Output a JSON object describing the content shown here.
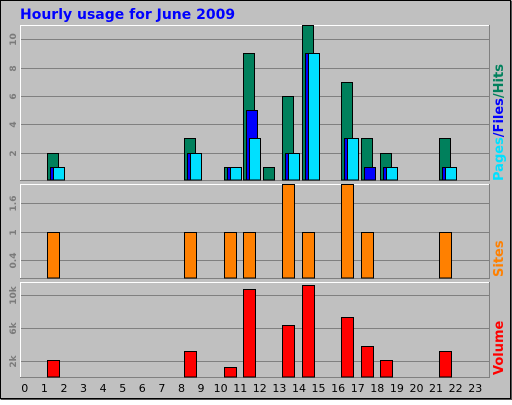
{
  "title": "Hourly usage for June 2009",
  "colors": {
    "background": "#C0C0C0",
    "title": "#0000FF",
    "hits": "#00805C",
    "files": "#0000FF",
    "pages": "#00E0FF",
    "sites": "#FF8000",
    "volume": "#FF0000",
    "grid": "#808080",
    "tick_label": "#7A7A7A"
  },
  "chart_data": [
    {
      "type": "bar",
      "panel": "pages-files-hits",
      "side_label": {
        "pages": "Pages",
        "sep1": "/",
        "files": "Files",
        "sep2": "/",
        "hits": "Hits"
      },
      "ylim": [
        0,
        11
      ],
      "yticks": [
        "2",
        "4",
        "6",
        "8",
        "10"
      ],
      "ytick_values": [
        2,
        4,
        6,
        8,
        10
      ],
      "grid": true,
      "series": [
        {
          "name": "Hits",
          "values": [
            0,
            2,
            0,
            0,
            0,
            0,
            0,
            0,
            3,
            0,
            1,
            9,
            1,
            6,
            11,
            0,
            7,
            3,
            2,
            0,
            0,
            3,
            0,
            0
          ]
        },
        {
          "name": "Files",
          "values": [
            0,
            1,
            0,
            0,
            0,
            0,
            0,
            0,
            2,
            0,
            1,
            5,
            0,
            2,
            9,
            0,
            3,
            1,
            1,
            0,
            0,
            1,
            0,
            0
          ]
        },
        {
          "name": "Pages",
          "values": [
            0,
            1,
            0,
            0,
            0,
            0,
            0,
            0,
            2,
            0,
            1,
            3,
            0,
            2,
            9,
            0,
            3,
            0,
            1,
            0,
            0,
            1,
            0,
            0
          ]
        }
      ]
    },
    {
      "type": "bar",
      "panel": "sites",
      "side_label": "Sites",
      "ylim": [
        0,
        2
      ],
      "yticks": [
        "0.4",
        "1",
        "1.6"
      ],
      "ytick_values": [
        0.4,
        1,
        1.6
      ],
      "grid": true,
      "series": [
        {
          "name": "Sites",
          "values": [
            0,
            1,
            0,
            0,
            0,
            0,
            0,
            0,
            1,
            0,
            1,
            1,
            0,
            2,
            1,
            0,
            2,
            1,
            0,
            0,
            0,
            1,
            0,
            0
          ]
        }
      ]
    },
    {
      "type": "bar",
      "panel": "volume",
      "side_label": "Volume",
      "ylim": [
        0,
        11500
      ],
      "yticks": [
        "2k",
        "6k",
        "10k"
      ],
      "ytick_values": [
        2000,
        6000,
        10000
      ],
      "grid": true,
      "series": [
        {
          "name": "Volume",
          "values": [
            0,
            2200,
            0,
            0,
            0,
            0,
            0,
            0,
            3200,
            0,
            1300,
            10700,
            0,
            6300,
            11200,
            0,
            7300,
            3800,
            2200,
            0,
            0,
            3200,
            0,
            0
          ]
        }
      ]
    }
  ],
  "x_axis": {
    "categories": [
      "0",
      "1",
      "2",
      "3",
      "4",
      "5",
      "6",
      "7",
      "8",
      "9",
      "10",
      "11",
      "12",
      "13",
      "14",
      "15",
      "16",
      "17",
      "18",
      "19",
      "20",
      "21",
      "22",
      "23"
    ]
  }
}
